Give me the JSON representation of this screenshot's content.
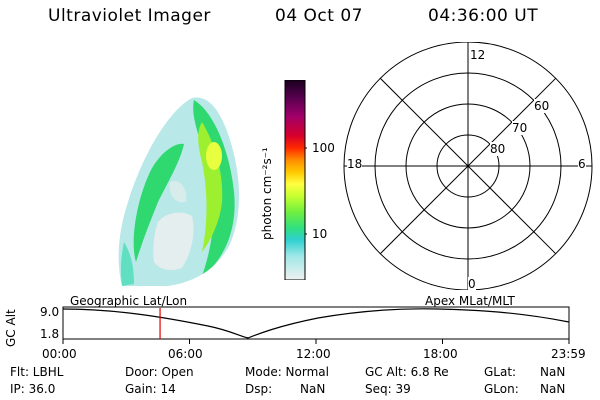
{
  "header": {
    "instrument": "Ultraviolet Imager",
    "date": "04 Oct 07",
    "time": "04:36:00 UT"
  },
  "colorbar": {
    "unit_label": "photon cm⁻²s⁻¹",
    "ticks": [
      "100",
      "10"
    ],
    "colors": [
      "#200020",
      "#5a0050",
      "#a0006a",
      "#d8002a",
      "#ff3000",
      "#ff8c00",
      "#ffc800",
      "#ffff40",
      "#c8ff30",
      "#70f040",
      "#30e080",
      "#30d0d0",
      "#a0e8e8",
      "#e8e8e8"
    ]
  },
  "polar_grid": {
    "mlt_labels": [
      "12",
      "18",
      "6",
      "0"
    ],
    "lat_labels": [
      "60",
      "70",
      "80"
    ]
  },
  "timeline": {
    "y_label": "GC Alt",
    "y_ticks": [
      "9.0",
      "1.8"
    ],
    "left_caption": "Geographic Lat/Lon",
    "right_caption": "Apex MLat/MLT",
    "x_ticks": [
      "00:00",
      "06:00",
      "12:00",
      "18:00",
      "23:59"
    ],
    "marker_time_hours": 4.6
  },
  "status": {
    "filter": "Flt: LBHL",
    "ip": "IP: 36.0",
    "door": "Door: Open",
    "gain": "Gain: 14",
    "mode": "Mode: Normal",
    "dsp": "Dsp:",
    "dsp_value": "NaN",
    "gc_alt": "GC Alt: 6.8 Re",
    "seq": "Seq: 39",
    "glat": "GLat:",
    "glat_value": "NaN",
    "glon": "GLon:",
    "glon_value": "NaN"
  }
}
